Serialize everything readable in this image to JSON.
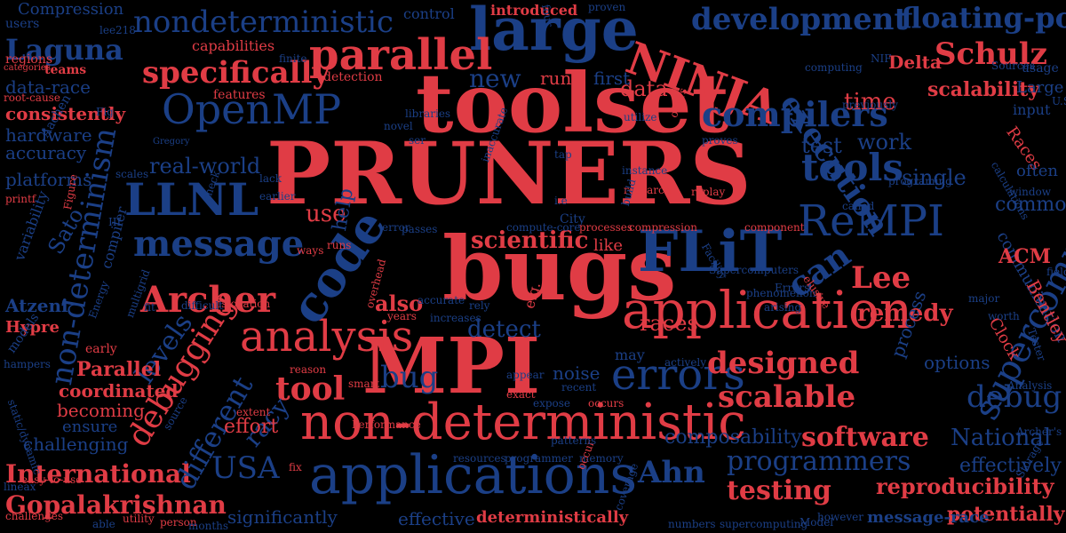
{
  "colors": {
    "background": "#000000",
    "red": "#e03c45",
    "blue": "#1b3f86"
  },
  "words": [
    "PRUNERS",
    "toolset",
    "bugs",
    "MPI",
    "large",
    "non-deterministic",
    "applications",
    "application",
    "analysis",
    "code",
    "FLiT",
    "parallel",
    "NINJA",
    "OpenMP",
    "LLNL",
    "ReMPI",
    "message",
    "specifically",
    "compilers",
    "Archer",
    "errors",
    "tools",
    "debugging",
    "non-determinism",
    "supercomputers",
    "execution",
    "nondeterministic",
    "development",
    "floating-point",
    "Schulz",
    "Laguna",
    "Lee",
    "designed",
    "scalable",
    "programmers",
    "testing",
    "Ahn",
    "USA",
    "tool",
    "bug",
    "can",
    "debug",
    "software",
    "National",
    "reproducibility",
    "Gopalakrishnan",
    "International",
    "levels",
    "different",
    "scientific",
    "detect",
    "also",
    "remedy",
    "races",
    "racy",
    "real-world",
    "work",
    "time",
    "test",
    "single",
    "scalability",
    "data",
    "new",
    "run",
    "first",
    "data-race",
    "consistently",
    "hardware",
    "accuracy",
    "platforms",
    "Parallel",
    "coordinated",
    "becoming",
    "ensure",
    "challenging",
    "effort",
    "composability",
    "effective",
    "deterministically",
    "significantly",
    "potentially",
    "message-race",
    "effectively",
    "communication",
    "Bentley",
    "Clock",
    "options",
    "process",
    "noise",
    "use",
    "help",
    "like",
    "may",
    "e.g.",
    "ACM",
    "Delta",
    "Large",
    "Compression",
    "control",
    "introduced",
    "users",
    "regions",
    "teams",
    "capabilities",
    "features",
    "detection",
    "Sato",
    "Atzeni",
    "Hypre",
    "compiler",
    "early",
    "models",
    "variability",
    "printf",
    "root-cause",
    "categories",
    "Races",
    "often",
    "common",
    "input",
    "usage",
    "Gregory",
    "Aachen",
    "City",
    "instance",
    "research",
    "replay",
    "compression",
    "processes",
    "compute-core",
    "component",
    "Supercomputers",
    "phenomenon",
    "Facility",
    "Errors",
    "arising",
    "elusive",
    "major",
    "worth",
    "Tester",
    "Analysis",
    "Archer's",
    "Storage",
    "however",
    "numbers",
    "supercomputing",
    "Model",
    "memory",
    "programmer",
    "resources",
    "coverage",
    "occur",
    "fix",
    "source",
    "static/dynamic",
    "easy-to-use",
    "challenges",
    "able",
    "utility",
    "person",
    "months",
    "lineax",
    "hampers",
    "extent",
    "exact",
    "appear",
    "expose",
    "occurs",
    "actively",
    "recent",
    "smart",
    "reason",
    "years",
    "increases",
    "rely",
    "accurate",
    "overhead",
    "dislocation",
    "difficult",
    "multigrid",
    "fit",
    "Energy",
    "Figure",
    "III",
    "lack",
    "earlier",
    "check",
    "runs",
    "ways",
    "passes",
    "inaccurate",
    "tap",
    "i.e",
    "proves",
    "called",
    "previously",
    "computing",
    "utilize",
    "libraries",
    "novel",
    "ser",
    "finite",
    "lee218",
    "proven",
    "four",
    "NIF",
    "U.S",
    "fields",
    "patterns",
    "offers",
    "Performance",
    "Fig",
    "scales",
    "Sources",
    "calculations",
    "build",
    "programing",
    "error",
    "window"
  ]
}
